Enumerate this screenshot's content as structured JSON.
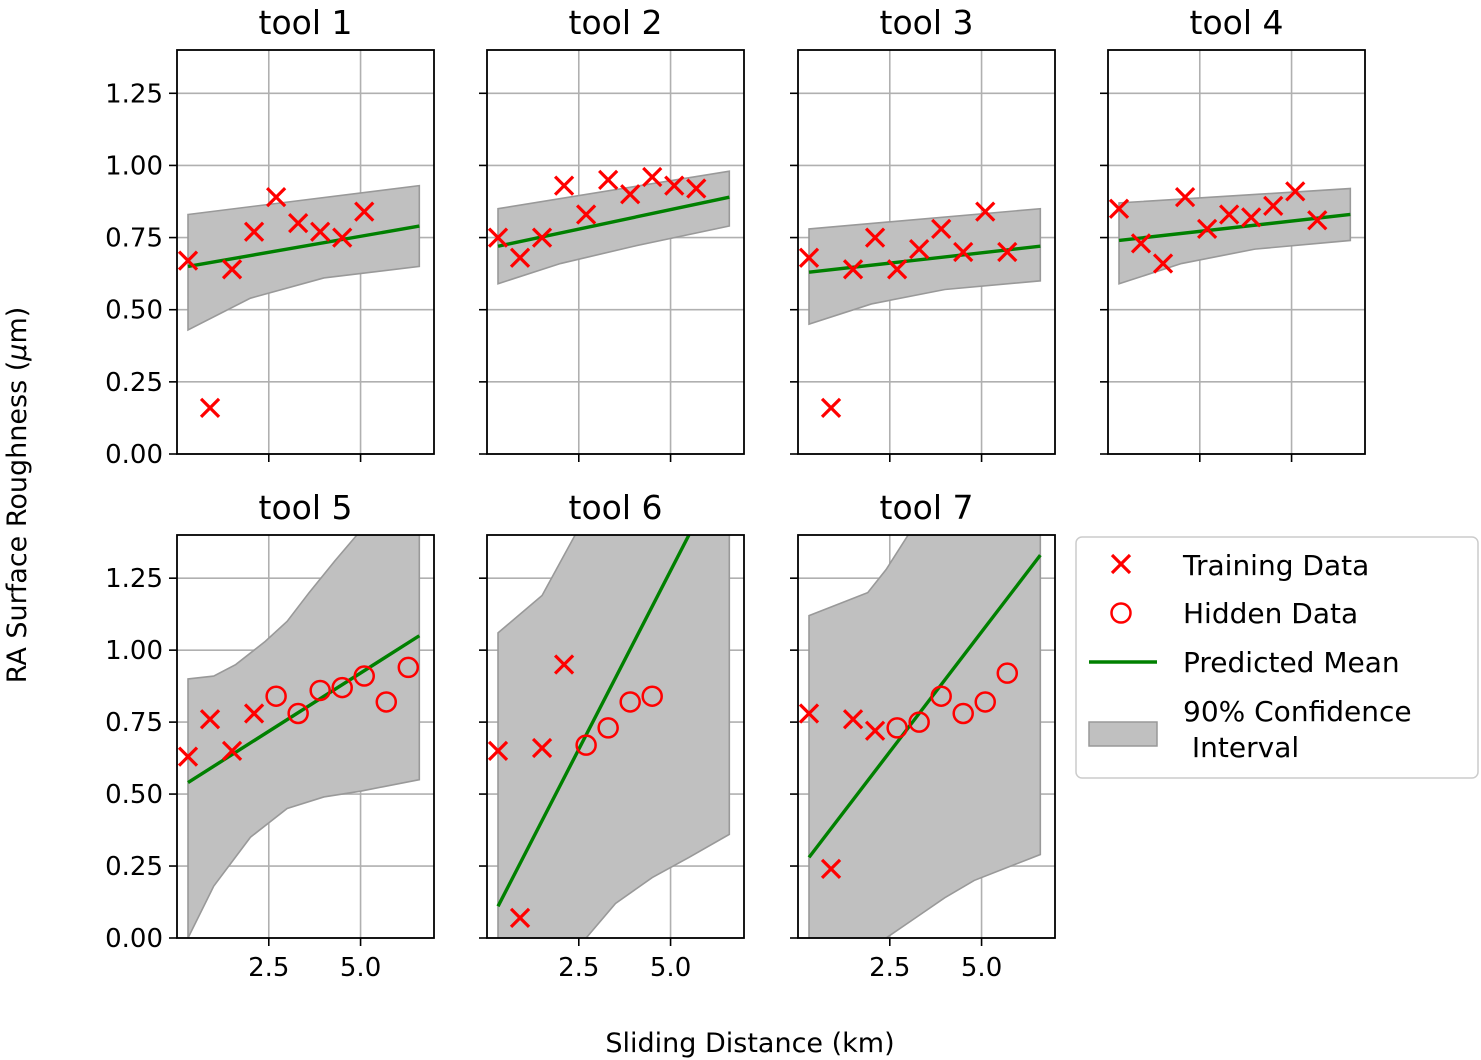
{
  "figure": {
    "xlabel": "Sliding Distance (km)",
    "ylabel_prefix": "RA Surface Roughness (",
    "ylabel_mu": "μ",
    "ylabel_suffix": "m)",
    "colors": {
      "training": "#ff0000",
      "hidden": "#ff0000",
      "mean": "#008000",
      "band_fill": "#c0c0c0",
      "band_edge": "#999999",
      "grid": "#b0b0b0"
    },
    "legend": {
      "placement": "right of tool 7",
      "entries": [
        {
          "label": "Training Data"
        },
        {
          "label": "Hidden Data"
        },
        {
          "label": "Predicted Mean"
        },
        {
          "label": "90% Confidence"
        },
        {
          "label": " Interval"
        }
      ]
    }
  },
  "chart_data": [
    {
      "type": "line",
      "title": "tool 1",
      "xlim": [
        0.0,
        7.0
      ],
      "ylim": [
        0.0,
        1.4
      ],
      "yticks": [
        "0.00",
        "0.25",
        "0.50",
        "0.75",
        "1.00",
        "1.25"
      ],
      "xticks": [
        "2.5",
        "5.0"
      ],
      "grid": true,
      "training": [
        [
          0.3,
          0.67
        ],
        [
          0.9,
          0.16
        ],
        [
          1.5,
          0.64
        ],
        [
          2.1,
          0.77
        ],
        [
          2.7,
          0.89
        ],
        [
          3.3,
          0.8
        ],
        [
          3.9,
          0.77
        ],
        [
          4.5,
          0.75
        ],
        [
          5.1,
          0.84
        ]
      ],
      "hidden": [],
      "mean": [
        [
          0.3,
          0.65
        ],
        [
          6.6,
          0.79
        ]
      ],
      "ci_upper": [
        [
          0.3,
          0.83
        ],
        [
          6.6,
          0.93
        ]
      ],
      "ci_lower": [
        [
          0.3,
          0.43
        ],
        [
          2.0,
          0.54
        ],
        [
          4.0,
          0.61
        ],
        [
          6.6,
          0.65
        ]
      ]
    },
    {
      "type": "line",
      "title": "tool 2",
      "xlim": [
        0.0,
        7.0
      ],
      "ylim": [
        0.0,
        1.4
      ],
      "yticks": [
        "0.00",
        "0.25",
        "0.50",
        "0.75",
        "1.00",
        "1.25"
      ],
      "xticks": [
        "2.5",
        "5.0"
      ],
      "grid": true,
      "training": [
        [
          0.3,
          0.75
        ],
        [
          0.9,
          0.68
        ],
        [
          1.5,
          0.75
        ],
        [
          2.1,
          0.93
        ],
        [
          2.7,
          0.83
        ],
        [
          3.3,
          0.95
        ],
        [
          3.9,
          0.9
        ],
        [
          4.5,
          0.96
        ],
        [
          5.1,
          0.93
        ],
        [
          5.7,
          0.92
        ]
      ],
      "hidden": [],
      "mean": [
        [
          0.3,
          0.72
        ],
        [
          6.6,
          0.89
        ]
      ],
      "ci_upper": [
        [
          0.3,
          0.85
        ],
        [
          6.6,
          0.98
        ]
      ],
      "ci_lower": [
        [
          0.3,
          0.59
        ],
        [
          2.0,
          0.66
        ],
        [
          4.0,
          0.72
        ],
        [
          6.6,
          0.79
        ]
      ]
    },
    {
      "type": "line",
      "title": "tool 3",
      "xlim": [
        0.0,
        7.0
      ],
      "ylim": [
        0.0,
        1.4
      ],
      "yticks": [
        "0.00",
        "0.25",
        "0.50",
        "0.75",
        "1.00",
        "1.25"
      ],
      "xticks": [
        "2.5",
        "5.0"
      ],
      "grid": true,
      "training": [
        [
          0.3,
          0.68
        ],
        [
          0.9,
          0.16
        ],
        [
          1.5,
          0.64
        ],
        [
          2.1,
          0.75
        ],
        [
          2.7,
          0.64
        ],
        [
          3.3,
          0.71
        ],
        [
          3.9,
          0.78
        ],
        [
          4.5,
          0.7
        ],
        [
          5.1,
          0.84
        ],
        [
          5.7,
          0.7
        ]
      ],
      "hidden": [],
      "mean": [
        [
          0.3,
          0.63
        ],
        [
          6.6,
          0.72
        ]
      ],
      "ci_upper": [
        [
          0.3,
          0.78
        ],
        [
          6.6,
          0.85
        ]
      ],
      "ci_lower": [
        [
          0.3,
          0.45
        ],
        [
          2.0,
          0.52
        ],
        [
          4.0,
          0.57
        ],
        [
          6.6,
          0.6
        ]
      ]
    },
    {
      "type": "line",
      "title": "tool 4",
      "xlim": [
        0.0,
        7.0
      ],
      "ylim": [
        0.0,
        1.4
      ],
      "yticks": [
        "0.00",
        "0.25",
        "0.50",
        "0.75",
        "1.00",
        "1.25"
      ],
      "xticks": [
        "2.5",
        "5.0"
      ],
      "grid": true,
      "training": [
        [
          0.3,
          0.85
        ],
        [
          0.9,
          0.73
        ],
        [
          1.5,
          0.66
        ],
        [
          2.1,
          0.89
        ],
        [
          2.7,
          0.78
        ],
        [
          3.3,
          0.83
        ],
        [
          3.9,
          0.82
        ],
        [
          4.5,
          0.86
        ],
        [
          5.1,
          0.91
        ],
        [
          5.7,
          0.81
        ]
      ],
      "hidden": [],
      "mean": [
        [
          0.3,
          0.74
        ],
        [
          6.6,
          0.83
        ]
      ],
      "ci_upper": [
        [
          0.3,
          0.87
        ],
        [
          6.6,
          0.92
        ]
      ],
      "ci_lower": [
        [
          0.3,
          0.59
        ],
        [
          2.0,
          0.66
        ],
        [
          4.0,
          0.71
        ],
        [
          6.6,
          0.74
        ]
      ]
    },
    {
      "type": "line",
      "title": "tool 5",
      "xlim": [
        0.0,
        7.0
      ],
      "ylim": [
        0.0,
        1.4
      ],
      "yticks": [
        "0.00",
        "0.25",
        "0.50",
        "0.75",
        "1.00",
        "1.25"
      ],
      "xticks": [
        "2.5",
        "5.0"
      ],
      "grid": true,
      "training": [
        [
          0.3,
          0.63
        ],
        [
          0.9,
          0.76
        ],
        [
          1.5,
          0.65
        ],
        [
          2.1,
          0.78
        ]
      ],
      "hidden": [
        [
          2.7,
          0.84
        ],
        [
          3.3,
          0.78
        ],
        [
          3.9,
          0.86
        ],
        [
          4.5,
          0.87
        ],
        [
          5.1,
          0.91
        ],
        [
          5.7,
          0.82
        ],
        [
          6.3,
          0.94
        ]
      ],
      "mean": [
        [
          0.3,
          0.54
        ],
        [
          6.6,
          1.05
        ]
      ],
      "ci_upper": [
        [
          0.3,
          0.9
        ],
        [
          1.0,
          0.91
        ],
        [
          1.6,
          0.95
        ],
        [
          2.4,
          1.03
        ],
        [
          3.0,
          1.1
        ],
        [
          3.6,
          1.2
        ],
        [
          4.3,
          1.31
        ],
        [
          4.9,
          1.4
        ],
        [
          6.6,
          1.4
        ]
      ],
      "ci_lower": [
        [
          0.3,
          0.0
        ],
        [
          1.0,
          0.18
        ],
        [
          2.0,
          0.35
        ],
        [
          3.0,
          0.45
        ],
        [
          4.0,
          0.49
        ],
        [
          5.0,
          0.51
        ],
        [
          6.6,
          0.55
        ]
      ]
    },
    {
      "type": "line",
      "title": "tool 6",
      "xlim": [
        0.0,
        7.0
      ],
      "ylim": [
        0.0,
        1.4
      ],
      "yticks": [
        "0.00",
        "0.25",
        "0.50",
        "0.75",
        "1.00",
        "1.25"
      ],
      "xticks": [
        "2.5",
        "5.0"
      ],
      "grid": true,
      "training": [
        [
          0.3,
          0.65
        ],
        [
          0.9,
          0.07
        ],
        [
          1.5,
          0.66
        ],
        [
          2.1,
          0.95
        ]
      ],
      "hidden": [
        [
          2.7,
          0.67
        ],
        [
          3.3,
          0.73
        ],
        [
          3.9,
          0.82
        ],
        [
          4.5,
          0.84
        ]
      ],
      "mean": [
        [
          0.3,
          0.11
        ],
        [
          5.5,
          1.4
        ]
      ],
      "ci_upper": [
        [
          0.3,
          1.06
        ],
        [
          1.5,
          1.19
        ],
        [
          2.4,
          1.4
        ],
        [
          6.6,
          1.4
        ]
      ],
      "ci_lower": [
        [
          2.7,
          0.0
        ],
        [
          3.5,
          0.12
        ],
        [
          4.5,
          0.21
        ],
        [
          5.5,
          0.28
        ],
        [
          6.6,
          0.36
        ]
      ]
    },
    {
      "type": "line",
      "title": "tool 7",
      "xlim": [
        0.0,
        7.0
      ],
      "ylim": [
        0.0,
        1.4
      ],
      "yticks": [
        "0.00",
        "0.25",
        "0.50",
        "0.75",
        "1.00",
        "1.25"
      ],
      "xticks": [
        "2.5",
        "5.0"
      ],
      "grid": true,
      "training": [
        [
          0.3,
          0.78
        ],
        [
          0.9,
          0.24
        ],
        [
          1.5,
          0.76
        ],
        [
          2.1,
          0.72
        ]
      ],
      "hidden": [
        [
          2.7,
          0.73
        ],
        [
          3.3,
          0.75
        ],
        [
          3.9,
          0.84
        ],
        [
          4.5,
          0.78
        ],
        [
          5.1,
          0.82
        ],
        [
          5.7,
          0.92
        ]
      ],
      "mean": [
        [
          0.3,
          0.28
        ],
        [
          6.6,
          1.33
        ]
      ],
      "ci_upper": [
        [
          0.3,
          1.12
        ],
        [
          1.3,
          1.17
        ],
        [
          1.9,
          1.2
        ],
        [
          2.4,
          1.28
        ],
        [
          3.0,
          1.4
        ],
        [
          6.6,
          1.4
        ]
      ],
      "ci_lower": [
        [
          2.4,
          0.0
        ],
        [
          3.2,
          0.07
        ],
        [
          4.0,
          0.14
        ],
        [
          4.8,
          0.2
        ],
        [
          6.6,
          0.29
        ]
      ]
    }
  ]
}
